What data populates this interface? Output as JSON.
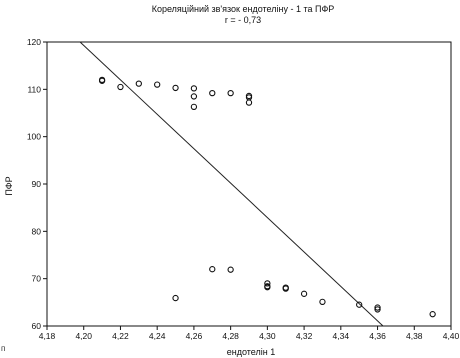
{
  "chart_data": {
    "type": "scatter",
    "title": "Кореляційний зв'язок ендотеліну - 1 та ПФР",
    "subtitle": "r = - 0,73",
    "xlabel": "ендотелін 1",
    "ylabel": "ПФР",
    "xlim": [
      4.18,
      4.4
    ],
    "ylim": [
      60,
      120
    ],
    "x_ticks": [
      "4,18",
      "4,20",
      "4,22",
      "4,24",
      "4,26",
      "4,28",
      "4,30",
      "4,32",
      "4,34",
      "4,36",
      "4,38",
      "4,40"
    ],
    "y_ticks": [
      "60",
      "70",
      "80",
      "90",
      "100",
      "110",
      "120"
    ],
    "grid": false,
    "points": [
      {
        "x": 4.21,
        "y": 112
      },
      {
        "x": 4.21,
        "y": 111.8
      },
      {
        "x": 4.22,
        "y": 110.5
      },
      {
        "x": 4.23,
        "y": 111.2
      },
      {
        "x": 4.24,
        "y": 111
      },
      {
        "x": 4.25,
        "y": 110.3
      },
      {
        "x": 4.26,
        "y": 110.2
      },
      {
        "x": 4.26,
        "y": 108.5
      },
      {
        "x": 4.26,
        "y": 106.3
      },
      {
        "x": 4.27,
        "y": 109.2
      },
      {
        "x": 4.28,
        "y": 109.2
      },
      {
        "x": 4.29,
        "y": 108.6
      },
      {
        "x": 4.29,
        "y": 108.3
      },
      {
        "x": 4.29,
        "y": 107.2
      },
      {
        "x": 4.25,
        "y": 65.9
      },
      {
        "x": 4.27,
        "y": 72
      },
      {
        "x": 4.28,
        "y": 71.9
      },
      {
        "x": 4.3,
        "y": 69
      },
      {
        "x": 4.3,
        "y": 68.4
      },
      {
        "x": 4.3,
        "y": 68.2
      },
      {
        "x": 4.31,
        "y": 68.1
      },
      {
        "x": 4.31,
        "y": 67.9
      },
      {
        "x": 4.32,
        "y": 66.8
      },
      {
        "x": 4.33,
        "y": 65.1
      },
      {
        "x": 4.35,
        "y": 64.5
      },
      {
        "x": 4.36,
        "y": 63.9
      },
      {
        "x": 4.36,
        "y": 63.5
      },
      {
        "x": 4.39,
        "y": 62.5
      }
    ],
    "fit_line": {
      "x": [
        4.198,
        4.363
      ],
      "y": [
        120,
        60
      ]
    },
    "colors": {
      "marker": "#111111",
      "line": "#222222",
      "frame": "#111111"
    }
  },
  "corner_mark": "п"
}
